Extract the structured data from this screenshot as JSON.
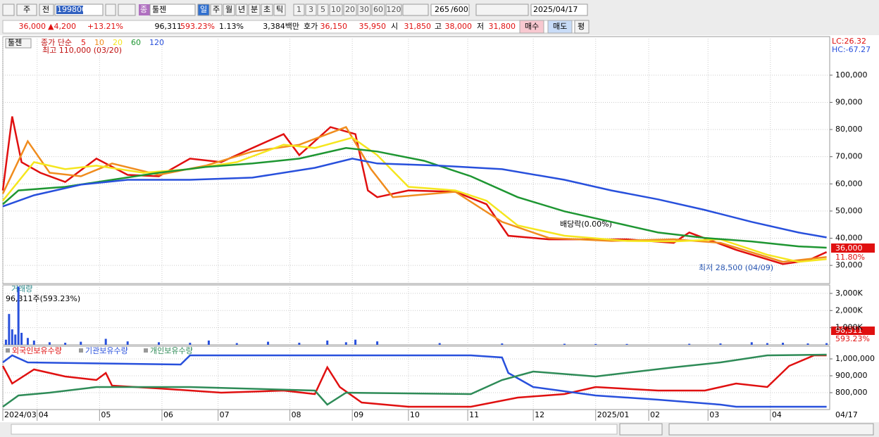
{
  "toolbar": {
    "market": "주",
    "scope": "전",
    "code": "199800",
    "badge": "종",
    "name": "툴젠",
    "periods": [
      "일",
      "주",
      "월",
      "년",
      "분",
      "초",
      "틱"
    ],
    "intervals": [
      "1",
      "3",
      "5",
      "10",
      "20",
      "30",
      "60",
      "120"
    ],
    "count": "265",
    "max": "/600",
    "date": "2025/04/17"
  },
  "quote": {
    "price": "36,000",
    "arrow": "▲",
    "change": "4,200",
    "change_pct": "+13.21%",
    "volume": "96,311",
    "volume_ratio": "593.23%",
    "turnover": "1.13%",
    "amount": "3,384백만",
    "ask_label": "호가",
    "ask": "36,150",
    "bid": "35,950",
    "open_label": "시",
    "open": "31,850",
    "high_label": "고",
    "high": "38,000",
    "low_label": "저",
    "low": "31,800",
    "buy": "매수",
    "sell": "매도",
    "avg": "평"
  },
  "chart_data": [
    {
      "type": "line",
      "title": "툴젠",
      "legend_title": "종가 단순",
      "xlim": [
        0,
        265
      ],
      "ylim": [
        23300,
        114200
      ],
      "yticks": [
        {
          "value": 30000,
          "label": "30,000"
        },
        {
          "value": 40000,
          "label": "40,000"
        },
        {
          "value": 50000,
          "label": "50,000"
        },
        {
          "value": 60000,
          "label": "60,000"
        },
        {
          "value": 70000,
          "label": "70,000"
        },
        {
          "value": 80000,
          "label": "80,000"
        },
        {
          "value": 90000,
          "label": "90,000"
        },
        {
          "value": 100000,
          "label": "100,000"
        }
      ],
      "series": [
        {
          "name": "5",
          "color": "#e01010",
          "x": [
            0,
            3,
            6,
            12,
            20,
            30,
            40,
            50,
            60,
            70,
            80,
            90,
            95,
            105,
            113,
            117,
            120,
            130,
            145,
            155,
            162,
            175,
            190,
            200,
            215,
            220,
            235,
            250,
            258,
            264
          ],
          "values": [
            57600,
            84800,
            68000,
            64100,
            60700,
            69300,
            63300,
            62800,
            69300,
            68000,
            73200,
            78300,
            70600,
            80900,
            78300,
            57600,
            55100,
            57600,
            57100,
            52500,
            40900,
            39600,
            39600,
            39600,
            38300,
            42100,
            35700,
            30500,
            31800,
            34900
          ]
        },
        {
          "name": "10",
          "color": "#f08c1e",
          "x": [
            0,
            8,
            15,
            25,
            35,
            50,
            65,
            80,
            95,
            110,
            118,
            125,
            145,
            160,
            175,
            195,
            215,
            230,
            250,
            264
          ],
          "values": [
            56400,
            75700,
            64100,
            62800,
            67500,
            63300,
            66700,
            71900,
            74400,
            80900,
            65400,
            55100,
            57100,
            46000,
            40100,
            39000,
            39600,
            38300,
            31300,
            33100
          ]
        },
        {
          "name": "20",
          "color": "#f5e61e",
          "x": [
            0,
            10,
            20,
            30,
            45,
            60,
            75,
            90,
            100,
            112,
            120,
            130,
            145,
            155,
            165,
            180,
            200,
            215,
            230,
            245,
            255,
            264
          ],
          "values": [
            53800,
            68000,
            65400,
            66700,
            64100,
            65400,
            68000,
            74400,
            73200,
            77000,
            70600,
            58900,
            57600,
            53800,
            44700,
            40900,
            39000,
            38800,
            39600,
            33900,
            31300,
            32300
          ]
        },
        {
          "name": "60",
          "color": "#1e9632",
          "x": [
            0,
            5,
            20,
            35,
            50,
            65,
            80,
            95,
            110,
            120,
            135,
            150,
            165,
            180,
            195,
            210,
            225,
            240,
            255,
            264
          ],
          "values": [
            52500,
            57600,
            58900,
            61500,
            64100,
            66200,
            67500,
            69300,
            73200,
            71900,
            68500,
            62800,
            55100,
            49900,
            46000,
            42100,
            40100,
            38800,
            37000,
            36500
          ]
        },
        {
          "name": "120",
          "color": "#2850dc",
          "x": [
            0,
            10,
            25,
            40,
            60,
            80,
            100,
            112,
            120,
            140,
            160,
            180,
            195,
            210,
            225,
            240,
            255,
            264
          ],
          "values": [
            51700,
            55800,
            59700,
            61500,
            61500,
            62300,
            65900,
            69300,
            67500,
            66700,
            65400,
            61500,
            57600,
            54300,
            50400,
            46000,
            42100,
            40300
          ]
        }
      ],
      "annotations": [
        "최고 110,000 (03/20)",
        "배당락(0.00%)",
        "최저 28,500 (04/09)"
      ],
      "lc_label": "LC:26.32",
      "hc_label": "HC:-67.27",
      "last_label": "36,000",
      "last_pct": "11.80%"
    },
    {
      "type": "bar",
      "title": "거래량",
      "subtitle": "96,311주(593.23%)",
      "color": "#2850dc",
      "xlim": [
        0,
        265
      ],
      "ylim": [
        0,
        3490000
      ],
      "yticks": [
        {
          "value": 1000000,
          "label": "1,000K"
        },
        {
          "value": 2000000,
          "label": "2,000K"
        },
        {
          "value": 3000000,
          "label": "3,000K"
        }
      ],
      "x": [
        1,
        2,
        3,
        4,
        5,
        6,
        8,
        10,
        15,
        20,
        25,
        33,
        40,
        50,
        60,
        66,
        75,
        85,
        95,
        104,
        110,
        113,
        120,
        140,
        160,
        180,
        190,
        200,
        220,
        230,
        240,
        245,
        250,
        258,
        264
      ],
      "values": [
        300000,
        1800000,
        900000,
        600000,
        3400000,
        700000,
        400000,
        250000,
        150000,
        120000,
        180000,
        350000,
        200000,
        150000,
        120000,
        250000,
        100000,
        180000,
        120000,
        250000,
        150000,
        300000,
        200000,
        100000,
        80000,
        60000,
        50000,
        50000,
        60000,
        80000,
        150000,
        100000,
        120000,
        80000,
        96311
      ],
      "last_label": "96,311",
      "last_pct": "593.23%"
    },
    {
      "type": "line",
      "xlim": [
        0,
        265
      ],
      "ylim": [
        700000,
        1075000
      ],
      "yticks": [
        {
          "value": 800000,
          "label": "800,000"
        },
        {
          "value": 900000,
          "label": "900,000"
        },
        {
          "value": 1000000,
          "label": "1,000,000"
        }
      ],
      "xticks": [
        {
          "value": 0,
          "label": "2024/03"
        },
        {
          "value": 11,
          "label": "04"
        },
        {
          "value": 31,
          "label": "05"
        },
        {
          "value": 51,
          "label": "06"
        },
        {
          "value": 69,
          "label": "07"
        },
        {
          "value": 92,
          "label": "08"
        },
        {
          "value": 112,
          "label": "09"
        },
        {
          "value": 130,
          "label": "10"
        },
        {
          "value": 149,
          "label": "11"
        },
        {
          "value": 170,
          "label": "12"
        },
        {
          "value": 190,
          "label": "2025/01"
        },
        {
          "value": 207,
          "label": "02"
        },
        {
          "value": 226,
          "label": "03"
        },
        {
          "value": 246,
          "label": "04"
        }
      ],
      "x_end_label": "04/17",
      "series": [
        {
          "name": "외국인보유수량",
          "color": "#e01010",
          "x": [
            0,
            3,
            10,
            20,
            30,
            33,
            35,
            50,
            70,
            90,
            100,
            104,
            108,
            115,
            130,
            150,
            165,
            180,
            190,
            210,
            225,
            235,
            245,
            252,
            260,
            264
          ],
          "values": [
            958300,
            854200,
            937500,
            895800,
            875000,
            916700,
            841700,
            825000,
            800000,
            812500,
            791700,
            950000,
            833300,
            741700,
            716700,
            716700,
            770800,
            791700,
            833300,
            812500,
            812500,
            854200,
            833300,
            958300,
            1020800,
            1020800
          ]
        },
        {
          "name": "기관보유수량",
          "color": "#2850dc",
          "x": [
            0,
            3,
            8,
            57,
            60,
            150,
            160,
            162,
            170,
            190,
            210,
            230,
            235,
            264
          ],
          "values": [
            979200,
            1020800,
            979200,
            966700,
            1020800,
            1020800,
            1008300,
            916700,
            833300,
            783300,
            758300,
            729200,
            716700,
            716700
          ]
        },
        {
          "name": "개인보유수량",
          "color": "#2e8b57",
          "x": [
            0,
            5,
            15,
            30,
            60,
            100,
            104,
            110,
            150,
            160,
            170,
            190,
            215,
            230,
            245,
            264
          ],
          "values": [
            716700,
            783300,
            800000,
            833300,
            833300,
            812500,
            729200,
            800000,
            791700,
            875000,
            925000,
            895800,
            950000,
            979200,
            1020800,
            1025000
          ]
        }
      ]
    }
  ]
}
